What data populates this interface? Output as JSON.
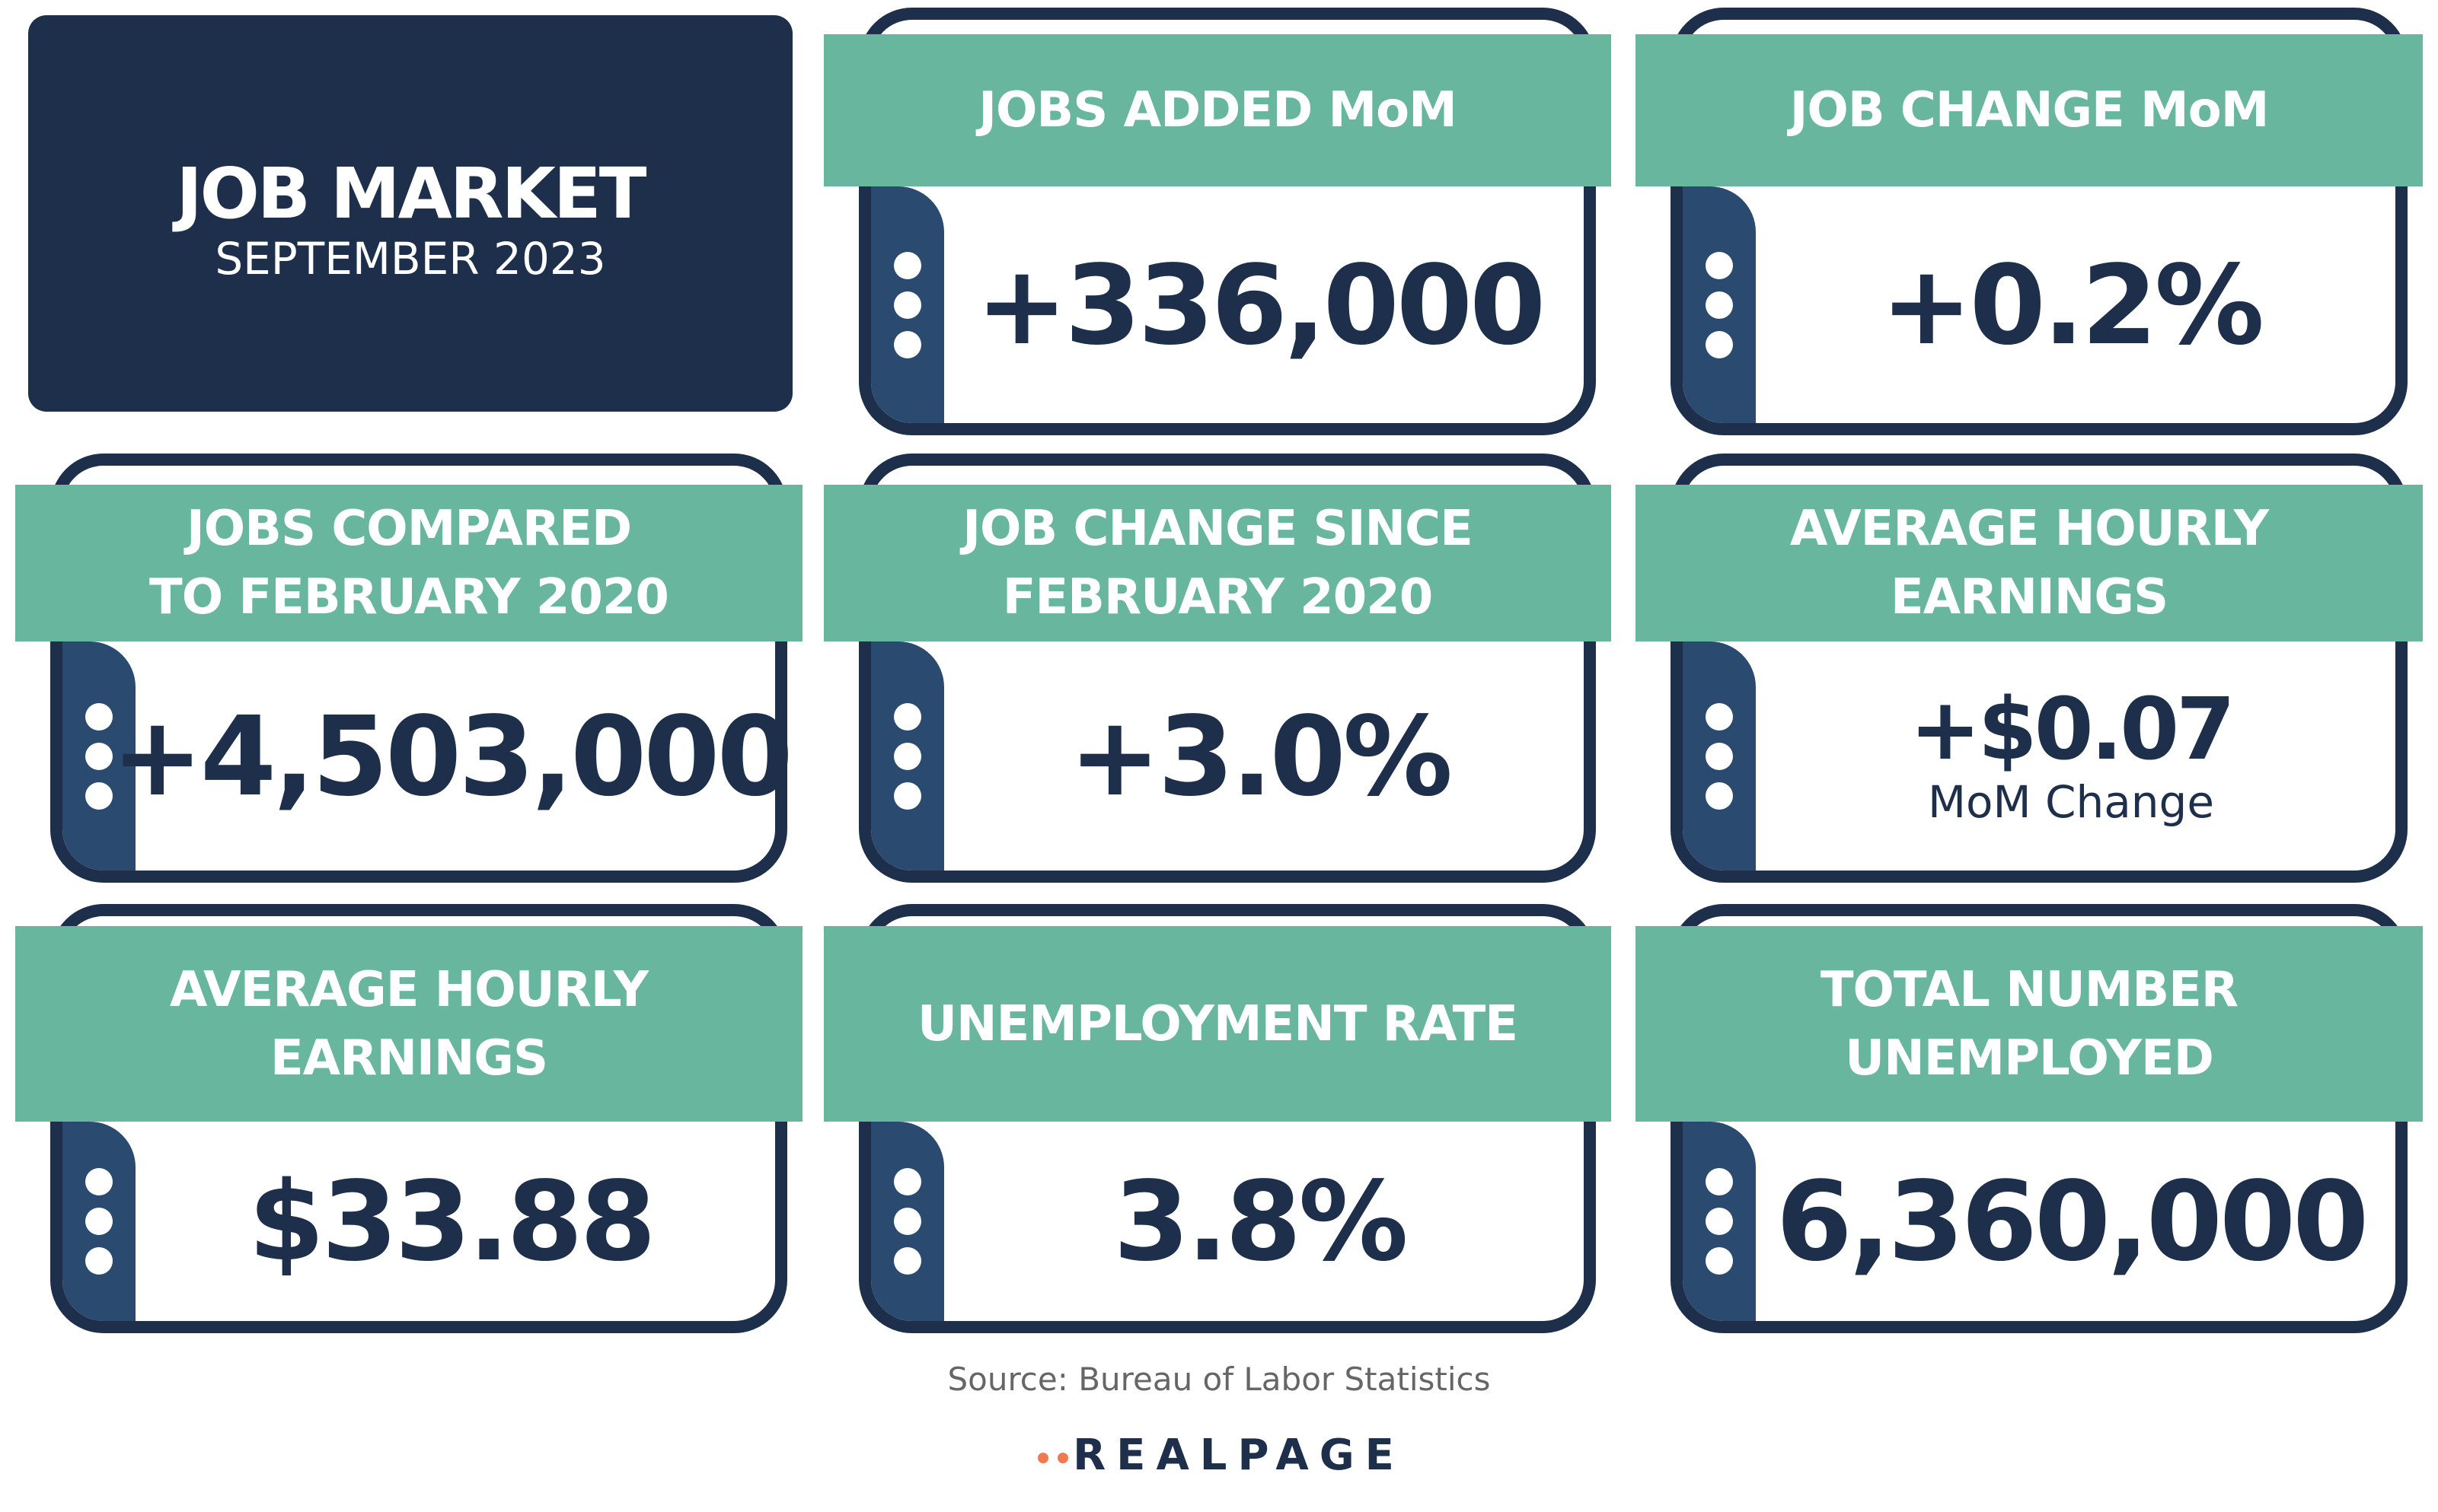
{
  "header": {
    "title": "JOB MARKET",
    "subtitle": "SEPTEMBER 2023"
  },
  "cards": [
    {
      "title_lines": [
        "JOBS ADDED MoM"
      ],
      "value": "+336,000"
    },
    {
      "title_lines": [
        "JOB CHANGE MoM"
      ],
      "value": "+0.2%"
    },
    {
      "title_lines": [
        "JOBS COMPARED",
        "TO FEBRUARY 2020"
      ],
      "value": "+4,503,000"
    },
    {
      "title_lines": [
        "JOB CHANGE SINCE",
        "FEBRUARY 2020"
      ],
      "value": "+3.0%"
    },
    {
      "title_lines": [
        "AVERAGE HOURLY",
        "EARNINGS"
      ],
      "value": "+$0.07",
      "note": "MoM Change"
    },
    {
      "title_lines": [
        "AVERAGE HOURLY",
        "EARNINGS"
      ],
      "value": "$33.88"
    },
    {
      "title_lines": [
        "UNEMPLOYMENT RATE"
      ],
      "value": "3.8%"
    },
    {
      "title_lines": [
        "TOTAL NUMBER",
        "UNEMPLOYED"
      ],
      "value": "6,360,000"
    }
  ],
  "footer": {
    "source": "Source: Bureau of Labor Statistics",
    "logo": "REALPAGE"
  }
}
